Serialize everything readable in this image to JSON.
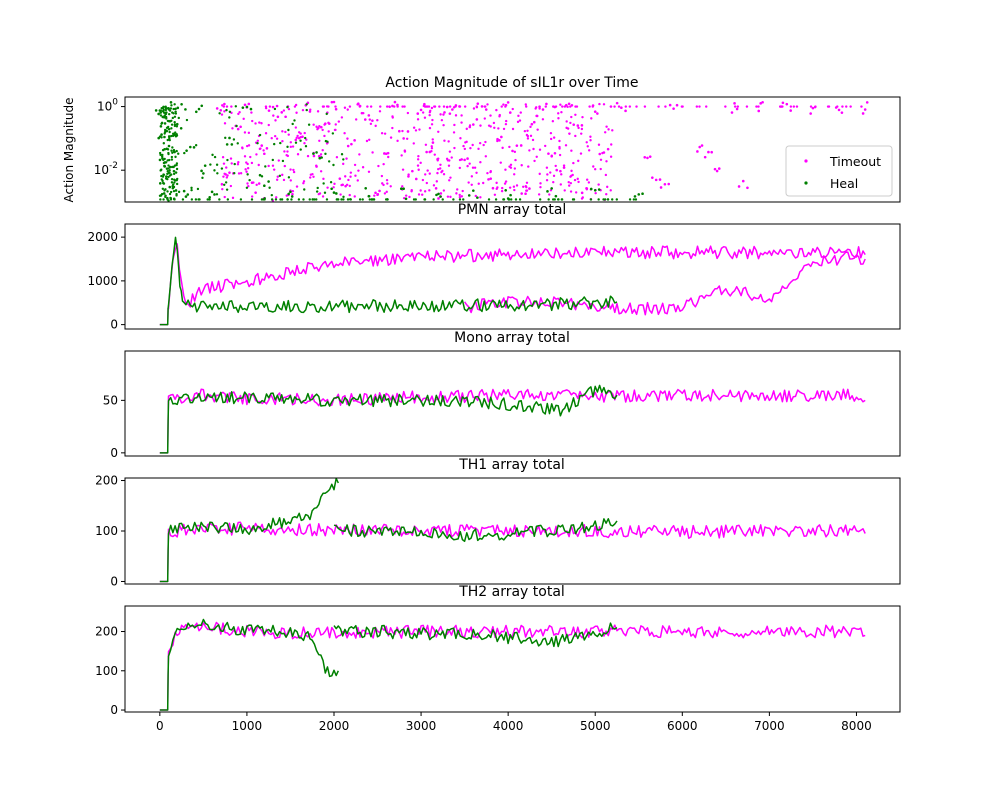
{
  "colors": {
    "timeout": "#ff00ff",
    "heal": "#008000"
  },
  "chart_data": [
    {
      "type": "scatter",
      "title": "Action Magnitude of sIL1r over Time",
      "ylabel": "Action Magnitude",
      "yscale": "log",
      "ylim": [
        0.001,
        2
      ],
      "xlim": [
        -400,
        8500
      ],
      "ytick_labels": [
        "10^0",
        "10^-2"
      ],
      "ytick_values": [
        1,
        0.01
      ],
      "legend": {
        "position": "lower right",
        "entries": [
          "Timeout",
          "Heal"
        ]
      },
      "series": [
        {
          "name": "Timeout",
          "color": "#ff00ff",
          "points": [
            [
              700,
              1.0
            ],
            [
              800,
              0.01
            ],
            [
              900,
              0.2
            ],
            [
              1000,
              1.0
            ],
            [
              1100,
              0.003
            ],
            [
              1200,
              0.05
            ],
            [
              1300,
              1.0
            ],
            [
              1400,
              0.5
            ],
            [
              1500,
              0.002
            ],
            [
              1600,
              0.1
            ],
            [
              1700,
              1.0
            ],
            [
              1800,
              0.02
            ],
            [
              1900,
              0.3
            ],
            [
              2000,
              1.0
            ],
            [
              2100,
              0.005
            ],
            [
              2200,
              0.08
            ],
            [
              2300,
              1.0
            ],
            [
              2400,
              0.4
            ],
            [
              2500,
              0.002
            ],
            [
              2600,
              0.03
            ],
            [
              2700,
              1.0
            ],
            [
              2800,
              0.15
            ],
            [
              2900,
              0.008
            ],
            [
              3000,
              1.0
            ],
            [
              3100,
              0.06
            ],
            [
              3200,
              0.002
            ],
            [
              3300,
              0.7
            ],
            [
              3400,
              1.0
            ],
            [
              3500,
              0.02
            ],
            [
              3600,
              0.3
            ],
            [
              3700,
              1.0
            ],
            [
              3800,
              0.004
            ],
            [
              3900,
              0.1
            ],
            [
              4000,
              1.0
            ],
            [
              4100,
              0.05
            ],
            [
              4200,
              0.002
            ],
            [
              4300,
              0.4
            ],
            [
              4400,
              1.0
            ],
            [
              4500,
              0.03
            ],
            [
              4600,
              0.01
            ],
            [
              4700,
              1.0
            ],
            [
              4800,
              0.2
            ],
            [
              4900,
              0.002
            ],
            [
              5000,
              1.0
            ],
            [
              5100,
              0.05
            ],
            [
              5300,
              1.0
            ],
            [
              5600,
              0.02
            ],
            [
              5700,
              0.005
            ],
            [
              5800,
              0.003
            ],
            [
              5900,
              1.0
            ],
            [
              6200,
              0.05
            ],
            [
              6300,
              0.03
            ],
            [
              6400,
              0.01
            ],
            [
              6600,
              1.0
            ],
            [
              6700,
              0.004
            ],
            [
              6900,
              1.0
            ],
            [
              7200,
              1.0
            ],
            [
              7500,
              1.0
            ],
            [
              7800,
              1.0
            ],
            [
              8100,
              1.0
            ]
          ]
        },
        {
          "name": "Heal",
          "color": "#008000",
          "points": [
            [
              0,
              1.0
            ],
            [
              10,
              0.5
            ],
            [
              20,
              0.1
            ],
            [
              30,
              0.02
            ],
            [
              40,
              0.005
            ],
            [
              50,
              0.002
            ],
            [
              60,
              0.3
            ],
            [
              80,
              0.05
            ],
            [
              100,
              1.0
            ],
            [
              120,
              0.01
            ],
            [
              150,
              0.003
            ],
            [
              200,
              0.2
            ],
            [
              250,
              1.0
            ],
            [
              300,
              0.002
            ],
            [
              350,
              0.05
            ],
            [
              450,
              1.0
            ],
            [
              500,
              0.01
            ],
            [
              600,
              0.002
            ],
            [
              800,
              0.1
            ],
            [
              1000,
              1.0
            ],
            [
              1200,
              0.005
            ],
            [
              1500,
              0.002
            ],
            [
              1800,
              0.03
            ],
            [
              2000,
              0.002
            ],
            [
              2400,
              0.002
            ],
            [
              2800,
              0.002
            ],
            [
              3200,
              0.002
            ],
            [
              3600,
              0.002
            ],
            [
              4000,
              0.002
            ],
            [
              4500,
              0.002
            ],
            [
              5000,
              0.002
            ],
            [
              5500,
              0.002
            ]
          ]
        }
      ]
    },
    {
      "type": "line",
      "title": "PMN array total",
      "ylabel": "",
      "ylim": [
        -100,
        2300
      ],
      "xlim": [
        -400,
        8500
      ],
      "yticks": [
        0,
        1000,
        2000
      ],
      "series": [
        {
          "name": "Timeout",
          "color": "#ff00ff",
          "x": [
            0,
            90,
            100,
            150,
            200,
            250,
            300,
            500,
            1000,
            1500,
            2000,
            3000,
            4000,
            5000,
            6000,
            7000,
            8000,
            8100
          ],
          "y": [
            0,
            0,
            500,
            1400,
            1800,
            900,
            450,
            800,
            1000,
            1200,
            1400,
            1550,
            1600,
            1650,
            1650,
            1650,
            1650,
            1600
          ]
        },
        {
          "name": "Timeout",
          "color": "#ff00ff",
          "x": [
            3500,
            4000,
            4500,
            5000,
            5500,
            6000,
            6500,
            7000,
            7500,
            8000,
            8100
          ],
          "y": [
            400,
            500,
            500,
            400,
            350,
            400,
            800,
            600,
            1400,
            1550,
            1500
          ]
        },
        {
          "name": "Heal",
          "color": "#008000",
          "x": [
            0,
            90,
            100,
            140,
            180,
            200,
            230,
            260,
            300,
            500,
            800,
            1200,
            2000,
            3000,
            4000,
            4500,
            5000,
            5250
          ],
          "y": [
            0,
            0,
            500,
            1400,
            2100,
            1700,
            900,
            500,
            450,
            430,
            420,
            410,
            420,
            430,
            450,
            470,
            500,
            520
          ]
        }
      ]
    },
    {
      "type": "line",
      "title": "Mono array total",
      "ylabel": "",
      "ylim": [
        -3,
        97
      ],
      "xlim": [
        -400,
        8500
      ],
      "yticks": [
        0,
        50
      ],
      "series": [
        {
          "name": "Timeout",
          "color": "#ff00ff",
          "x": [
            0,
            90,
            100,
            500,
            1000,
            2000,
            3000,
            4000,
            5000,
            6000,
            7000,
            8000,
            8100
          ],
          "y": [
            0,
            0,
            50,
            55,
            52,
            50,
            53,
            55,
            54,
            55,
            54,
            55,
            50
          ]
        },
        {
          "name": "Heal",
          "color": "#008000",
          "x": [
            0,
            90,
            100,
            500,
            1000,
            2000,
            3000,
            3800,
            4200,
            4600,
            5000,
            5250
          ],
          "y": [
            0,
            0,
            50,
            55,
            52,
            50,
            50,
            48,
            45,
            40,
            60,
            55
          ]
        }
      ]
    },
    {
      "type": "line",
      "title": "TH1 array total",
      "ylabel": "",
      "ylim": [
        -5,
        205
      ],
      "xlim": [
        -400,
        8500
      ],
      "yticks": [
        0,
        100,
        200
      ],
      "series": [
        {
          "name": "Timeout",
          "color": "#ff00ff",
          "x": [
            0,
            90,
            100,
            1000,
            2000,
            3000,
            4000,
            5000,
            6000,
            7000,
            8000,
            8100
          ],
          "y": [
            0,
            0,
            100,
            105,
            102,
            100,
            100,
            100,
            98,
            100,
            100,
            95
          ]
        },
        {
          "name": "Heal",
          "color": "#008000",
          "x": [
            0,
            90,
            100,
            500,
            1000,
            1500,
            1800,
            1900,
            2000,
            2050
          ],
          "y": [
            0,
            0,
            100,
            110,
            105,
            120,
            140,
            170,
            190,
            195
          ]
        },
        {
          "name": "Heal",
          "color": "#008000",
          "x": [
            2000,
            2500,
            3000,
            3500,
            4000,
            4500,
            5000,
            5250
          ],
          "y": [
            100,
            100,
            95,
            90,
            95,
            100,
            110,
            120
          ]
        }
      ]
    },
    {
      "type": "line",
      "title": "TH2 array total",
      "ylabel": "",
      "ylim": [
        -5,
        265
      ],
      "xlim": [
        -400,
        8500
      ],
      "yticks": [
        0,
        100,
        200
      ],
      "xticks": [
        0,
        1000,
        2000,
        3000,
        4000,
        5000,
        6000,
        7000,
        8000
      ],
      "series": [
        {
          "name": "Timeout",
          "color": "#ff00ff",
          "x": [
            0,
            90,
            100,
            200,
            500,
            1000,
            2000,
            3000,
            4000,
            5000,
            6000,
            7000,
            8000,
            8100
          ],
          "y": [
            0,
            0,
            150,
            200,
            210,
            200,
            195,
            200,
            200,
            200,
            200,
            200,
            200,
            190
          ]
        },
        {
          "name": "Heal",
          "color": "#008000",
          "x": [
            0,
            90,
            100,
            200,
            500,
            1000,
            1500,
            1700,
            1800,
            1900,
            2000,
            2050
          ],
          "y": [
            0,
            0,
            150,
            210,
            215,
            205,
            200,
            190,
            150,
            100,
            95,
            100
          ]
        },
        {
          "name": "Heal",
          "color": "#008000",
          "x": [
            2000,
            2500,
            3000,
            3500,
            4000,
            4500,
            5000,
            5250
          ],
          "y": [
            200,
            200,
            195,
            195,
            185,
            170,
            200,
            210
          ]
        }
      ]
    }
  ]
}
